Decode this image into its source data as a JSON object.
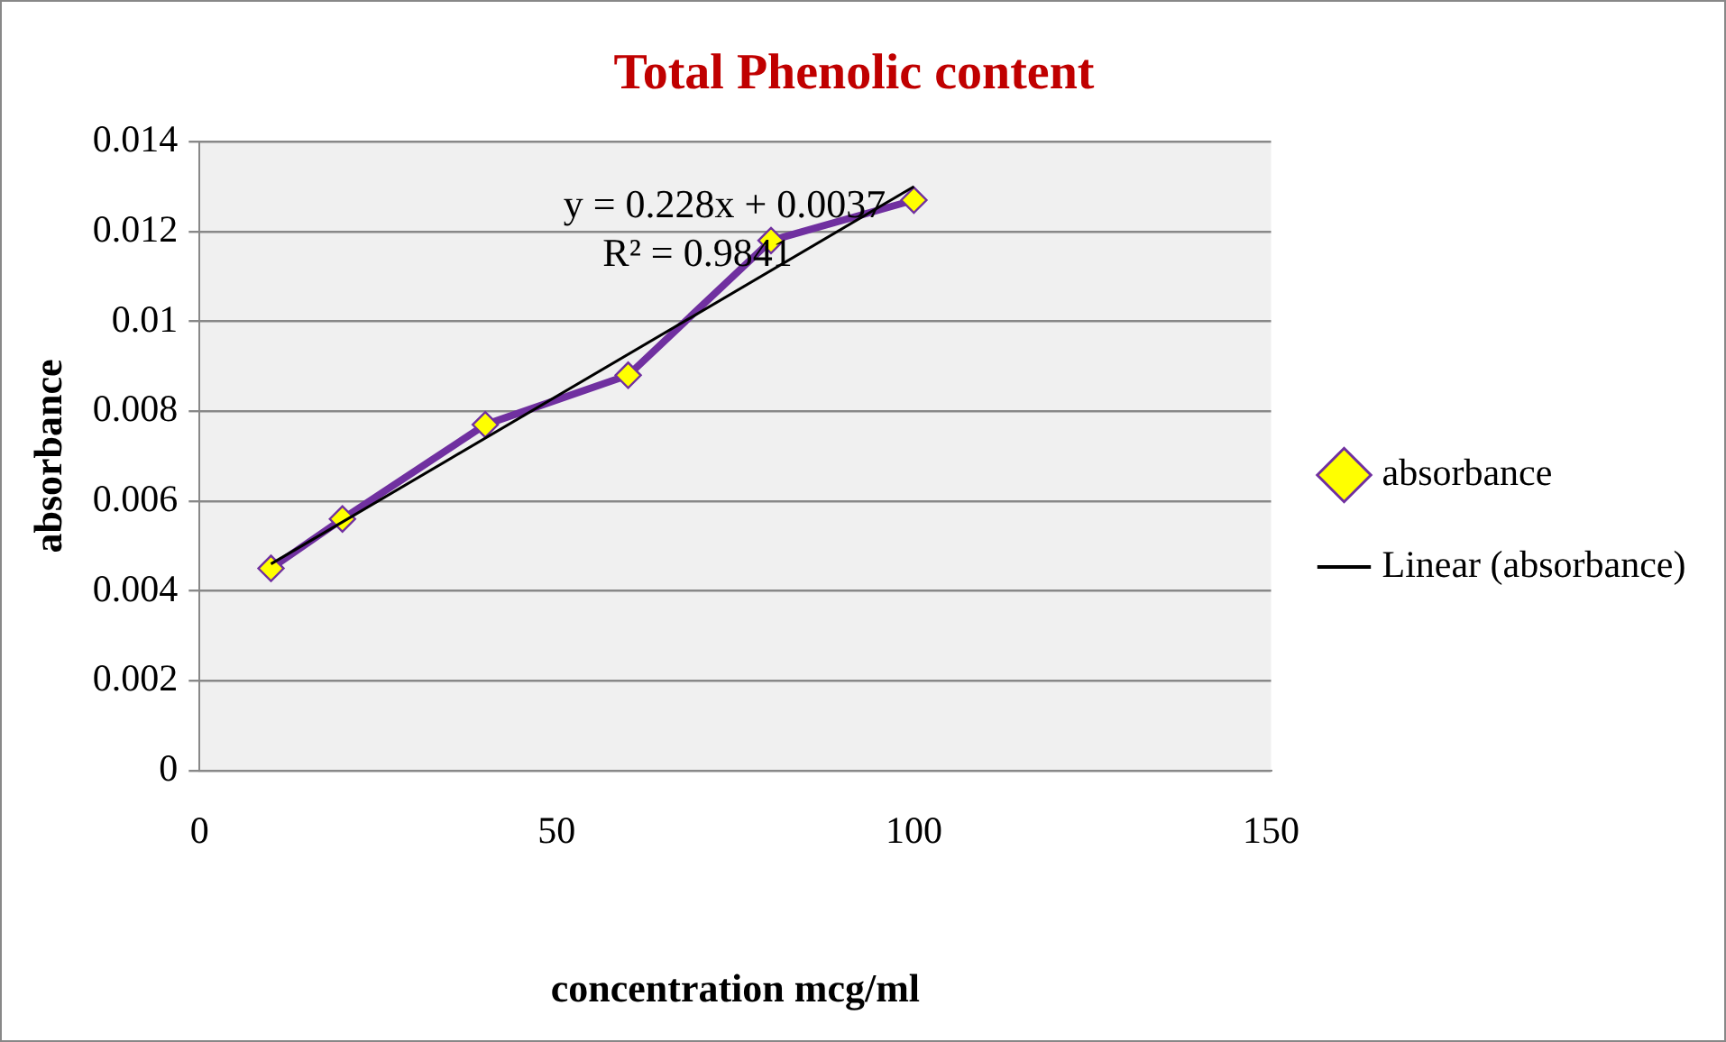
{
  "chart_data": {
    "type": "line",
    "title": "Total Phenolic content",
    "xlabel": "concentration mcg/ml",
    "ylabel": "absorbance",
    "x": [
      10,
      20,
      40,
      60,
      80,
      100
    ],
    "series": [
      {
        "name": "absorbance",
        "color": "#7030a0",
        "values": [
          0.0045,
          0.0056,
          0.0077,
          0.0088,
          0.0118,
          0.0127
        ],
        "marker": "diamond"
      },
      {
        "name": "Linear (absorbance)",
        "type": "line",
        "color": "#000000",
        "x": [
          10,
          100
        ],
        "values": [
          0.0046,
          0.013
        ],
        "marker": "none"
      }
    ],
    "xlim": [
      0,
      150
    ],
    "xticks": [
      0,
      50,
      100,
      150
    ],
    "ylim": [
      0,
      0.014
    ],
    "yticks": [
      0,
      0.002,
      0.004,
      0.006,
      0.008,
      0.01,
      0.012,
      0.014
    ],
    "grid": "y",
    "legend": "right",
    "annotations": [
      "y = 0.228x + 0.0037",
      "R² = 0.9841"
    ]
  }
}
